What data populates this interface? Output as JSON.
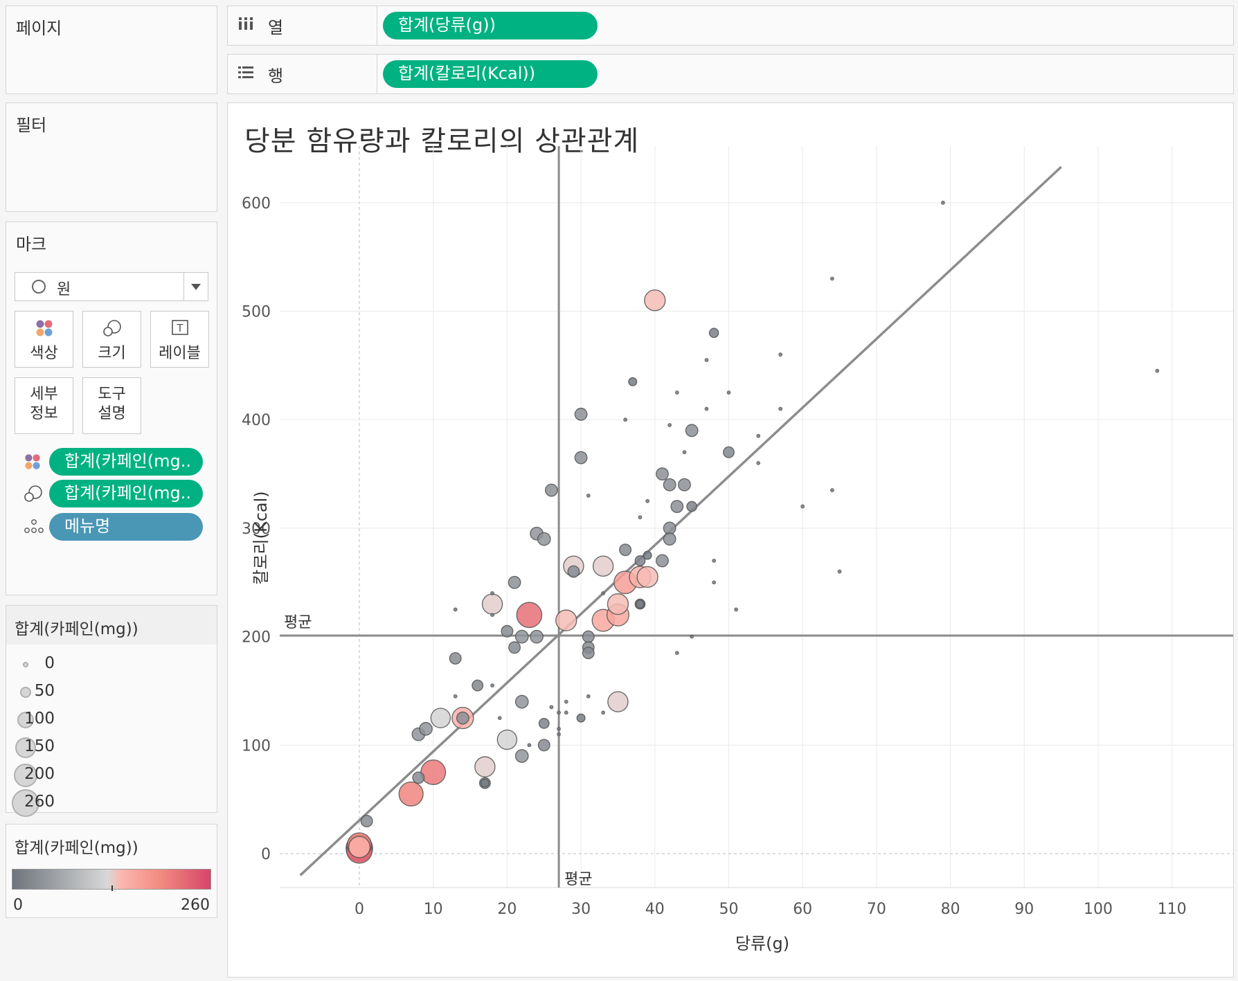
{
  "shelves": {
    "pages_label": "페이지",
    "columns_label": "열",
    "rows_label": "행",
    "columns_pill": "합계(당류(g))",
    "rows_pill": "합계(칼로리(Kcal))"
  },
  "filters_label": "필터",
  "marks": {
    "title": "마크",
    "mark_type": "원",
    "buttons": {
      "color": "색상",
      "size": "크기",
      "label": "레이블",
      "detail": "세부\n정보",
      "tooltip": "도구\n설명"
    },
    "pills": {
      "color_field": "합계(카페인(mg..",
      "size_field": "합계(카페인(mg..",
      "detail_field": "메뉴명"
    }
  },
  "size_legend": {
    "title": "합계(카페인(mg))",
    "values": [
      "0",
      "50",
      "100",
      "150",
      "200",
      "260"
    ]
  },
  "color_legend": {
    "title": "합계(카페인(mg))",
    "min": "0",
    "max": "260",
    "colors": [
      "#6e747c",
      "#d8d8d8",
      "#fbb6ae",
      "#f28a80",
      "#d6466a"
    ]
  },
  "chart_data": {
    "type": "scatter",
    "title": "당분 함유량과 칼로리의 상관관계",
    "xlabel": "당류(g)",
    "ylabel": "칼로리(Kcal)",
    "xlim": [
      -8,
      114
    ],
    "ylim": [
      -35,
      633
    ],
    "x_ticks": [
      "0",
      "10",
      "20",
      "30",
      "40",
      "50",
      "60",
      "70",
      "80",
      "90",
      "100",
      "110"
    ],
    "y_ticks": [
      "0",
      "100",
      "200",
      "300",
      "400",
      "500",
      "600"
    ],
    "reference_lines": {
      "x_avg": 27,
      "y_avg": 201,
      "label": "평균"
    },
    "trend_line": {
      "x": [
        -8,
        95
      ],
      "y": [
        -20,
        633
      ]
    },
    "points": [
      {
        "x": 0,
        "y": 5,
        "c": 250
      },
      {
        "x": 0,
        "y": 3,
        "c": 230
      },
      {
        "x": 0,
        "y": 8,
        "c": 200
      },
      {
        "x": 0,
        "y": 6,
        "c": 150
      },
      {
        "x": 1,
        "y": 30,
        "c": 30
      },
      {
        "x": 7,
        "y": 55,
        "c": 200
      },
      {
        "x": 8,
        "y": 70,
        "c": 30
      },
      {
        "x": 10,
        "y": 75,
        "c": 210
      },
      {
        "x": 8,
        "y": 110,
        "c": 40
      },
      {
        "x": 9,
        "y": 115,
        "c": 40
      },
      {
        "x": 11,
        "y": 125,
        "c": 120
      },
      {
        "x": 14,
        "y": 125,
        "c": 150
      },
      {
        "x": 14,
        "y": 125,
        "c": 35
      },
      {
        "x": 13,
        "y": 180,
        "c": 30
      },
      {
        "x": 16,
        "y": 155,
        "c": 25
      },
      {
        "x": 13,
        "y": 145,
        "c": 0
      },
      {
        "x": 18,
        "y": 230,
        "c": 130
      },
      {
        "x": 18,
        "y": 240,
        "c": 0
      },
      {
        "x": 18,
        "y": 220,
        "c": 0
      },
      {
        "x": 18,
        "y": 155,
        "c": 0
      },
      {
        "x": 13,
        "y": 225,
        "c": 0
      },
      {
        "x": 19,
        "y": 125,
        "c": 0
      },
      {
        "x": 17,
        "y": 80,
        "c": 130
      },
      {
        "x": 17,
        "y": 65,
        "c": 10
      },
      {
        "x": 17,
        "y": 65,
        "c": 25
      },
      {
        "x": 20,
        "y": 105,
        "c": 120
      },
      {
        "x": 21,
        "y": 250,
        "c": 35
      },
      {
        "x": 23,
        "y": 220,
        "c": 220
      },
      {
        "x": 20,
        "y": 205,
        "c": 30
      },
      {
        "x": 21,
        "y": 190,
        "c": 30
      },
      {
        "x": 22,
        "y": 200,
        "c": 40
      },
      {
        "x": 24,
        "y": 200,
        "c": 40
      },
      {
        "x": 22,
        "y": 140,
        "c": 40
      },
      {
        "x": 22,
        "y": 90,
        "c": 40
      },
      {
        "x": 23,
        "y": 100,
        "c": 0
      },
      {
        "x": 24,
        "y": 295,
        "c": 40
      },
      {
        "x": 25,
        "y": 290,
        "c": 40
      },
      {
        "x": 26,
        "y": 335,
        "c": 35
      },
      {
        "x": 25,
        "y": 120,
        "c": 20
      },
      {
        "x": 25,
        "y": 100,
        "c": 30
      },
      {
        "x": 26,
        "y": 135,
        "c": 0
      },
      {
        "x": 27,
        "y": 130,
        "c": 0
      },
      {
        "x": 27,
        "y": 115,
        "c": 0
      },
      {
        "x": 27,
        "y": 110,
        "c": 0
      },
      {
        "x": 28,
        "y": 140,
        "c": 0
      },
      {
        "x": 28,
        "y": 130,
        "c": 0
      },
      {
        "x": 28,
        "y": 215,
        "c": 140
      },
      {
        "x": 29,
        "y": 265,
        "c": 130
      },
      {
        "x": 29,
        "y": 260,
        "c": 30
      },
      {
        "x": 30,
        "y": 405,
        "c": 35
      },
      {
        "x": 30,
        "y": 365,
        "c": 35
      },
      {
        "x": 30,
        "y": 125,
        "c": 10
      },
      {
        "x": 31,
        "y": 200,
        "c": 30
      },
      {
        "x": 31,
        "y": 190,
        "c": 30
      },
      {
        "x": 31,
        "y": 185,
        "c": 30
      },
      {
        "x": 31,
        "y": 330,
        "c": 0
      },
      {
        "x": 31,
        "y": 145,
        "c": 0
      },
      {
        "x": 33,
        "y": 265,
        "c": 130
      },
      {
        "x": 33,
        "y": 215,
        "c": 160
      },
      {
        "x": 33,
        "y": 240,
        "c": 0
      },
      {
        "x": 33,
        "y": 130,
        "c": 0
      },
      {
        "x": 35,
        "y": 230,
        "c": 140
      },
      {
        "x": 35,
        "y": 220,
        "c": 160
      },
      {
        "x": 35,
        "y": 140,
        "c": 130
      },
      {
        "x": 36,
        "y": 250,
        "c": 170
      },
      {
        "x": 36,
        "y": 280,
        "c": 30
      },
      {
        "x": 36,
        "y": 400,
        "c": 0
      },
      {
        "x": 37,
        "y": 435,
        "c": 10
      },
      {
        "x": 38,
        "y": 255,
        "c": 150
      },
      {
        "x": 38,
        "y": 270,
        "c": 20
      },
      {
        "x": 38,
        "y": 230,
        "c": 20
      },
      {
        "x": 38,
        "y": 230,
        "c": 10
      },
      {
        "x": 38,
        "y": 310,
        "c": 0
      },
      {
        "x": 39,
        "y": 255,
        "c": 140
      },
      {
        "x": 39,
        "y": 275,
        "c": 10
      },
      {
        "x": 39,
        "y": 325,
        "c": 0
      },
      {
        "x": 40,
        "y": 510,
        "c": 140
      },
      {
        "x": 41,
        "y": 350,
        "c": 35
      },
      {
        "x": 42,
        "y": 340,
        "c": 35
      },
      {
        "x": 42,
        "y": 300,
        "c": 35
      },
      {
        "x": 42,
        "y": 395,
        "c": 0
      },
      {
        "x": 43,
        "y": 320,
        "c": 35
      },
      {
        "x": 43,
        "y": 425,
        "c": 0
      },
      {
        "x": 43,
        "y": 185,
        "c": 0
      },
      {
        "x": 44,
        "y": 340,
        "c": 35
      },
      {
        "x": 44,
        "y": 370,
        "c": 0
      },
      {
        "x": 42,
        "y": 290,
        "c": 35
      },
      {
        "x": 41,
        "y": 270,
        "c": 35
      },
      {
        "x": 45,
        "y": 390,
        "c": 35
      },
      {
        "x": 45,
        "y": 320,
        "c": 20
      },
      {
        "x": 45,
        "y": 200,
        "c": 0
      },
      {
        "x": 47,
        "y": 455,
        "c": 0
      },
      {
        "x": 47,
        "y": 410,
        "c": 0
      },
      {
        "x": 48,
        "y": 480,
        "c": 15
      },
      {
        "x": 48,
        "y": 270,
        "c": 0
      },
      {
        "x": 48,
        "y": 250,
        "c": 0
      },
      {
        "x": 50,
        "y": 370,
        "c": 25
      },
      {
        "x": 50,
        "y": 425,
        "c": 0
      },
      {
        "x": 51,
        "y": 225,
        "c": 0
      },
      {
        "x": 54,
        "y": 385,
        "c": 0
      },
      {
        "x": 54,
        "y": 360,
        "c": 0
      },
      {
        "x": 57,
        "y": 460,
        "c": 0
      },
      {
        "x": 57,
        "y": 410,
        "c": 0
      },
      {
        "x": 60,
        "y": 320,
        "c": 0
      },
      {
        "x": 64,
        "y": 530,
        "c": 0
      },
      {
        "x": 64,
        "y": 335,
        "c": 0
      },
      {
        "x": 65,
        "y": 260,
        "c": 0
      },
      {
        "x": 79,
        "y": 600,
        "c": 0
      },
      {
        "x": 108,
        "y": 445,
        "c": 0
      }
    ]
  }
}
